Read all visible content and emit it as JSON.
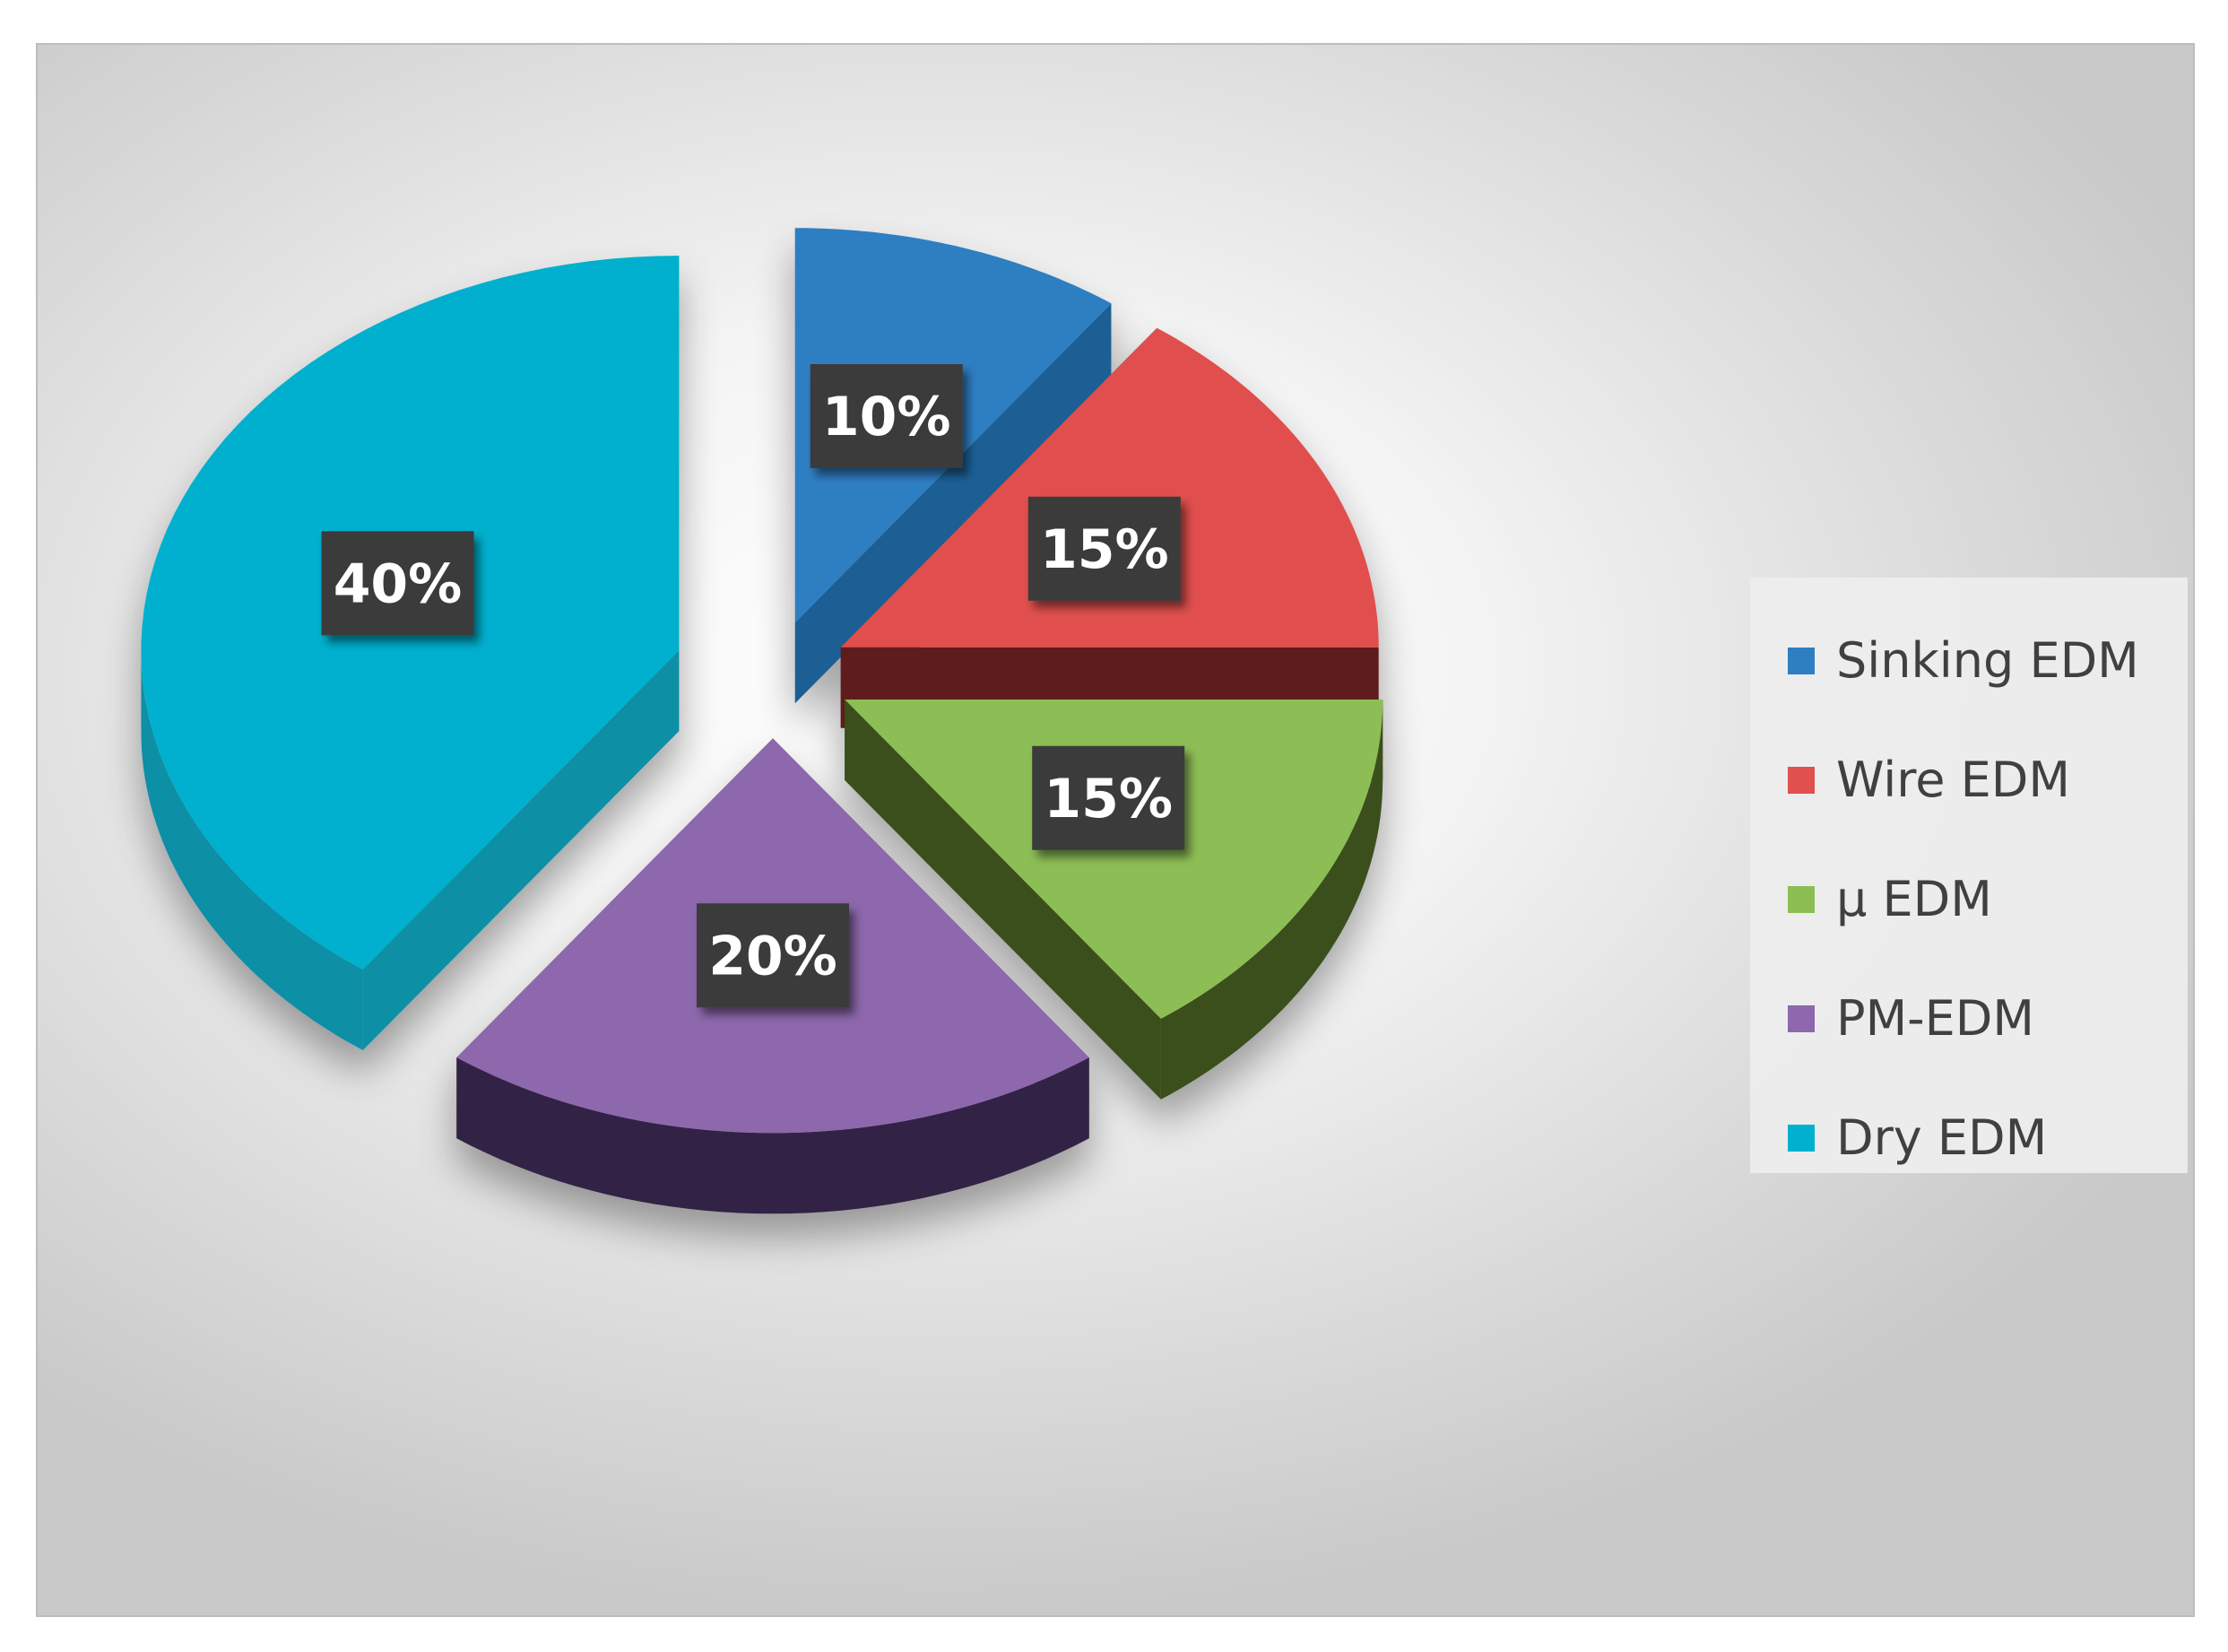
{
  "chart_data": {
    "type": "pie",
    "categories": [
      "Sinking EDM",
      "Wire EDM",
      "µ EDM",
      "PM-EDM",
      "Dry EDM"
    ],
    "values": [
      10,
      15,
      15,
      20,
      40
    ],
    "data_labels": [
      "10%",
      "15%",
      "15%",
      "20%",
      "40%"
    ],
    "colors": [
      "#2E7EC2",
      "#E0504E",
      "#8DBE54",
      "#8D68AC",
      "#00B0CE"
    ],
    "side_colors": [
      "#1F5F94",
      "#5E1C1C",
      "#3A4F1A",
      "#332244",
      "#0A8FA5"
    ],
    "style": "3D exploded pie",
    "legend_position": "right",
    "title": ""
  }
}
